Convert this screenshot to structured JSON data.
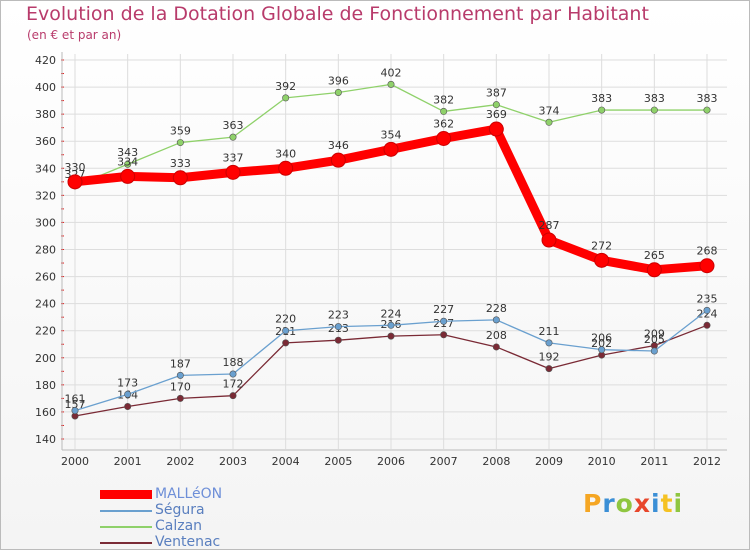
{
  "header": {
    "title": "Evolution de la Dotation Globale de Fonctionnement par Habitant",
    "subtitle": "(en € et par an)"
  },
  "logo": {
    "letters": [
      "P",
      "r",
      "o",
      "x",
      "i",
      "t",
      "i"
    ],
    "colors": [
      "#f5a623",
      "#3b8fd6",
      "#8fc640",
      "#e8462b",
      "#3b8fd6",
      "#f5c223",
      "#8fc640"
    ]
  },
  "chart_data": {
    "type": "line",
    "title": "Evolution de la Dotation Globale de Fonctionnement par Habitant",
    "subtitle": "(en € et par an)",
    "xlabel": "",
    "ylabel": "",
    "x": [
      "2000",
      "2001",
      "2002",
      "2003",
      "2004",
      "2005",
      "2006",
      "2007",
      "2008",
      "2009",
      "2010",
      "2011",
      "2012"
    ],
    "ylim": [
      140,
      420
    ],
    "yticks": [
      140,
      160,
      180,
      200,
      220,
      240,
      260,
      280,
      300,
      320,
      340,
      360,
      380,
      400,
      420
    ],
    "grid": true,
    "legend": "bottom-left",
    "series": [
      {
        "name": "Calzan",
        "color": "#8fd16a",
        "values": [
          327,
          343,
          359,
          363,
          392,
          396,
          402,
          382,
          387,
          374,
          383,
          383,
          383
        ],
        "labels": [
          "327",
          "343",
          "359",
          "363",
          "392",
          "396",
          "402",
          "382",
          "387",
          "374",
          "383",
          "383",
          "383"
        ]
      },
      {
        "name": "Ventenac",
        "color": "#7a2a35",
        "values": [
          157,
          164,
          170,
          172,
          211,
          213,
          216,
          217,
          208,
          192,
          202,
          209,
          224
        ],
        "labels": [
          "157",
          "164",
          "170",
          "172",
          "211",
          "213",
          "216",
          "217",
          "208",
          "192",
          "202",
          "209",
          "224"
        ]
      },
      {
        "name": "Ségura",
        "color": "#6aa0cf",
        "values": [
          161,
          173,
          187,
          188,
          220,
          223,
          224,
          227,
          228,
          211,
          206,
          205,
          235
        ],
        "labels": [
          "161",
          "173",
          "187",
          "188",
          "220",
          "223",
          "224",
          "227",
          "228",
          "211",
          "206",
          "205",
          "235"
        ]
      },
      {
        "name": "MALLéON",
        "color": "#ff0000",
        "values": [
          330,
          334,
          333,
          337,
          340,
          346,
          354,
          362,
          369,
          287,
          272,
          265,
          268
        ],
        "labels": [
          "330",
          "334",
          "333",
          "337",
          "340",
          "346",
          "354",
          "362",
          "369",
          "287",
          "272",
          "265",
          "268"
        ]
      }
    ],
    "legend_entries": [
      {
        "name": "MALLéON",
        "color": "#ff0000",
        "text_color": "#6e8fd8"
      },
      {
        "name": "Ségura",
        "color": "#6aa0cf",
        "text_color": "#5a7fbf"
      },
      {
        "name": "Calzan",
        "color": "#8fd16a",
        "text_color": "#5a7fbf"
      },
      {
        "name": "Ventenac",
        "color": "#7a2a35",
        "text_color": "#5a7fbf"
      }
    ]
  }
}
